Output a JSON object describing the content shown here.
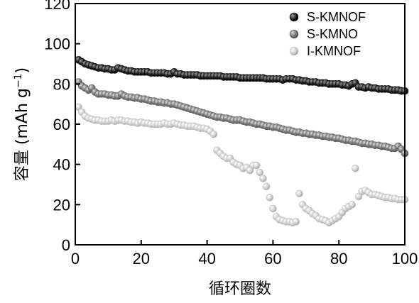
{
  "chart_data": {
    "type": "scatter",
    "title": "",
    "xlabel": "循环圈数",
    "ylabel": "容量 (mAh g",
    "ylabel_sup": "−1",
    "ylabel_close": ")",
    "xlim": [
      0,
      100
    ],
    "ylim": [
      0,
      120
    ],
    "xticks": [
      0,
      20,
      40,
      60,
      80,
      100
    ],
    "yticks": [
      0,
      20,
      40,
      60,
      80,
      100,
      120
    ],
    "grid": false,
    "legend_position": "top-right",
    "series": [
      {
        "name": "S-KMNOF",
        "color": "#111111",
        "x": [
          1,
          2,
          3,
          4,
          5,
          6,
          7,
          8,
          9,
          10,
          11,
          12,
          13,
          14,
          15,
          16,
          17,
          18,
          19,
          20,
          21,
          22,
          23,
          24,
          25,
          26,
          27,
          28,
          29,
          30,
          31,
          32,
          33,
          34,
          35,
          36,
          37,
          38,
          39,
          40,
          41,
          42,
          43,
          44,
          45,
          46,
          47,
          48,
          49,
          50,
          51,
          52,
          53,
          54,
          55,
          56,
          57,
          58,
          59,
          60,
          61,
          62,
          63,
          64,
          65,
          66,
          67,
          68,
          69,
          70,
          71,
          72,
          73,
          74,
          75,
          76,
          77,
          78,
          79,
          80,
          81,
          82,
          83,
          84,
          85,
          86,
          87,
          88,
          89,
          90,
          91,
          92,
          93,
          94,
          95,
          96,
          97,
          98,
          99,
          100
        ],
        "y": [
          92,
          91,
          90,
          89.5,
          89,
          88.5,
          88,
          88,
          87.5,
          87.5,
          87,
          87,
          88,
          87.5,
          87,
          86.5,
          86.5,
          86,
          86,
          86,
          86,
          86,
          85.5,
          85.5,
          85.5,
          85.5,
          85.5,
          85,
          85,
          86,
          85,
          85,
          84.5,
          84.5,
          84.5,
          84.5,
          84.5,
          84,
          84,
          84,
          84,
          84,
          84,
          84,
          83.5,
          83.5,
          83.5,
          83.5,
          83.5,
          83,
          83,
          83,
          83,
          83,
          83,
          83,
          83,
          82.5,
          82.5,
          82.5,
          82.5,
          82.5,
          82,
          82.5,
          82.5,
          82.5,
          82,
          82,
          81.5,
          81.5,
          81,
          81,
          81,
          80.5,
          80.5,
          80.5,
          80,
          80,
          80,
          80,
          79.5,
          79.5,
          79,
          80,
          80.5,
          78.5,
          78.5,
          78,
          78.5,
          78,
          78,
          77.5,
          77.5,
          77.5,
          77.5,
          77,
          77,
          77,
          76.5,
          76.5
        ]
      },
      {
        "name": "S-KMNO",
        "color": "#707070",
        "x": [
          1,
          2,
          3,
          4,
          5,
          6,
          7,
          8,
          9,
          10,
          11,
          12,
          13,
          14,
          15,
          16,
          17,
          18,
          19,
          20,
          21,
          22,
          23,
          24,
          25,
          26,
          27,
          28,
          29,
          30,
          31,
          32,
          33,
          34,
          35,
          36,
          37,
          38,
          39,
          40,
          41,
          42,
          43,
          44,
          45,
          46,
          47,
          48,
          49,
          50,
          51,
          52,
          53,
          54,
          55,
          56,
          57,
          58,
          59,
          60,
          61,
          62,
          63,
          64,
          65,
          66,
          67,
          68,
          69,
          70,
          71,
          72,
          73,
          74,
          75,
          76,
          77,
          78,
          79,
          80,
          81,
          82,
          83,
          84,
          85,
          86,
          87,
          88,
          89,
          90,
          91,
          92,
          93,
          94,
          95,
          96,
          97,
          98,
          99,
          100
        ],
        "y": [
          81,
          79,
          78,
          77,
          78,
          76,
          75,
          75,
          75,
          74.5,
          74.5,
          74,
          74,
          75,
          74,
          73.5,
          73.5,
          73,
          73,
          72.5,
          72.5,
          72,
          71.5,
          71.5,
          71,
          71,
          70.5,
          70.5,
          70,
          70,
          69.5,
          69,
          68.5,
          68,
          67.5,
          67,
          66.5,
          66,
          65.5,
          65,
          64.5,
          64,
          63.5,
          63.5,
          63,
          63,
          62.5,
          62,
          62,
          62,
          61.5,
          61,
          61,
          60.5,
          60,
          60,
          59.5,
          59,
          59,
          58.5,
          58.5,
          58,
          57.5,
          57,
          57,
          56.5,
          56,
          56,
          55.5,
          55.5,
          55,
          55,
          54.5,
          54.5,
          54,
          54,
          53.5,
          53.5,
          53,
          53,
          52.5,
          52,
          52,
          51.5,
          51.5,
          51,
          50.5,
          50.5,
          50,
          50,
          49.5,
          49.5,
          49,
          49,
          48.5,
          48,
          48,
          49,
          47.5,
          45.5
        ]
      },
      {
        "name": "I-KMNOF",
        "color": "#c6c6c6",
        "x": [
          1,
          2,
          3,
          4,
          5,
          6,
          7,
          8,
          9,
          10,
          11,
          12,
          13,
          14,
          15,
          16,
          17,
          18,
          19,
          20,
          21,
          22,
          23,
          24,
          25,
          26,
          27,
          28,
          29,
          30,
          31,
          32,
          33,
          34,
          35,
          36,
          37,
          38,
          39,
          40,
          41,
          42,
          43,
          44,
          45,
          46,
          47,
          48,
          49,
          50,
          51,
          52,
          53,
          54,
          55,
          56,
          57,
          58,
          59,
          60,
          61,
          62,
          63,
          64,
          65,
          66,
          67,
          68,
          69,
          70,
          71,
          72,
          73,
          74,
          75,
          76,
          77,
          78,
          79,
          80,
          81,
          82,
          83,
          84,
          85,
          86,
          87,
          88,
          89,
          90,
          91,
          92,
          93,
          94,
          95,
          96,
          97,
          98,
          99,
          100
        ],
        "y": [
          68.5,
          66,
          64,
          63,
          62.5,
          62,
          62,
          61.5,
          61.5,
          61.5,
          62,
          61.5,
          62,
          62,
          61.5,
          61.5,
          61,
          61,
          60.5,
          61,
          60.5,
          60.5,
          60,
          60,
          60,
          60,
          60.5,
          60,
          60,
          60.5,
          60,
          59.5,
          59.5,
          59,
          59,
          59,
          58.5,
          58,
          58,
          57.5,
          56.5,
          55,
          47,
          45.5,
          44,
          43,
          43,
          41,
          40,
          39.5,
          38,
          38.5,
          37,
          39.5,
          39.5,
          36,
          33,
          29,
          23.5,
          18,
          14,
          12.5,
          12,
          11.5,
          11.5,
          11,
          11.5,
          25.5,
          20,
          18,
          17,
          15.5,
          14.5,
          13,
          12.5,
          12,
          11,
          12,
          13,
          14,
          16,
          18,
          19,
          20,
          38,
          24,
          26.5,
          27,
          26,
          25,
          25,
          24.5,
          24,
          23.5,
          23.5,
          23,
          23,
          22.5,
          22.5,
          22.5
        ]
      }
    ]
  }
}
